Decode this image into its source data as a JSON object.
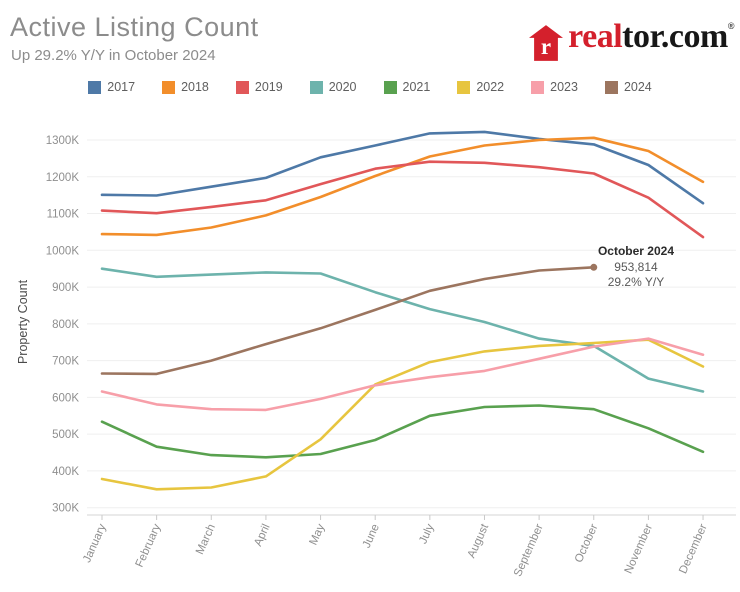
{
  "header": {
    "title": "Active Listing Count",
    "subtitle": "Up 29.2% Y/Y in October 2024"
  },
  "logo": {
    "house_letter": "r",
    "brand_red": "real",
    "brand_black": "tor.com",
    "registered": "®",
    "brand_color": "#d4202c"
  },
  "legend": [
    {
      "label": "2017",
      "color": "#4e79a7"
    },
    {
      "label": "2018",
      "color": "#f28e2b"
    },
    {
      "label": "2019",
      "color": "#e15759"
    },
    {
      "label": "2020",
      "color": "#6db3ac"
    },
    {
      "label": "2021",
      "color": "#59a14f"
    },
    {
      "label": "2022",
      "color": "#e7c53f"
    },
    {
      "label": "2023",
      "color": "#f79fa9"
    },
    {
      "label": "2024",
      "color": "#9c755f"
    }
  ],
  "chart_data": {
    "type": "line",
    "title": "Active Listing Count",
    "xlabel": "",
    "ylabel": "Property Count",
    "units": "thousands (K) of properties",
    "legend_position": "top",
    "grid": "horizontal",
    "ylim": [
      300,
      1300
    ],
    "y_ticks": [
      300,
      400,
      500,
      600,
      700,
      800,
      900,
      1000,
      1100,
      1200,
      1300
    ],
    "y_tick_suffix": "K",
    "categories": [
      "January",
      "February",
      "March",
      "April",
      "May",
      "June",
      "July",
      "August",
      "September",
      "October",
      "November",
      "December"
    ],
    "series": [
      {
        "name": "2017",
        "color": "#4e79a7",
        "values": [
          1151,
          1149,
          1173,
          1197,
          1253,
          1285,
          1318,
          1322,
          1303,
          1288,
          1232,
          1128
        ]
      },
      {
        "name": "2018",
        "color": "#f28e2b",
        "values": [
          1044,
          1042,
          1062,
          1095,
          1145,
          1202,
          1255,
          1285,
          1300,
          1306,
          1270,
          1186
        ]
      },
      {
        "name": "2019",
        "color": "#e15759",
        "values": [
          1108,
          1101,
          1118,
          1136,
          1180,
          1222,
          1241,
          1238,
          1226,
          1209,
          1143,
          1036
        ]
      },
      {
        "name": "2020",
        "color": "#6db3ac",
        "values": [
          950,
          928,
          934,
          940,
          937,
          886,
          840,
          805,
          760,
          740,
          651,
          616
        ]
      },
      {
        "name": "2021",
        "color": "#59a14f",
        "values": [
          534,
          466,
          443,
          437,
          446,
          484,
          550,
          574,
          578,
          568,
          516,
          452
        ]
      },
      {
        "name": "2022",
        "color": "#e7c53f",
        "values": [
          378,
          350,
          355,
          385,
          486,
          635,
          696,
          725,
          740,
          748,
          757,
          684
        ]
      },
      {
        "name": "2023",
        "color": "#f79fa9",
        "values": [
          616,
          581,
          568,
          566,
          596,
          633,
          655,
          672,
          705,
          738,
          760,
          716
        ]
      },
      {
        "name": "2024",
        "color": "#9c755f",
        "values": [
          665,
          664,
          700,
          745,
          788,
          838,
          890,
          922,
          945,
          953.8
        ]
      }
    ],
    "annotation": {
      "title": "October 2024",
      "value": "953,814",
      "delta": "29.2% Y/Y",
      "series": "2024",
      "month": "October",
      "month_index": 9,
      "value_k": 953.8
    }
  }
}
